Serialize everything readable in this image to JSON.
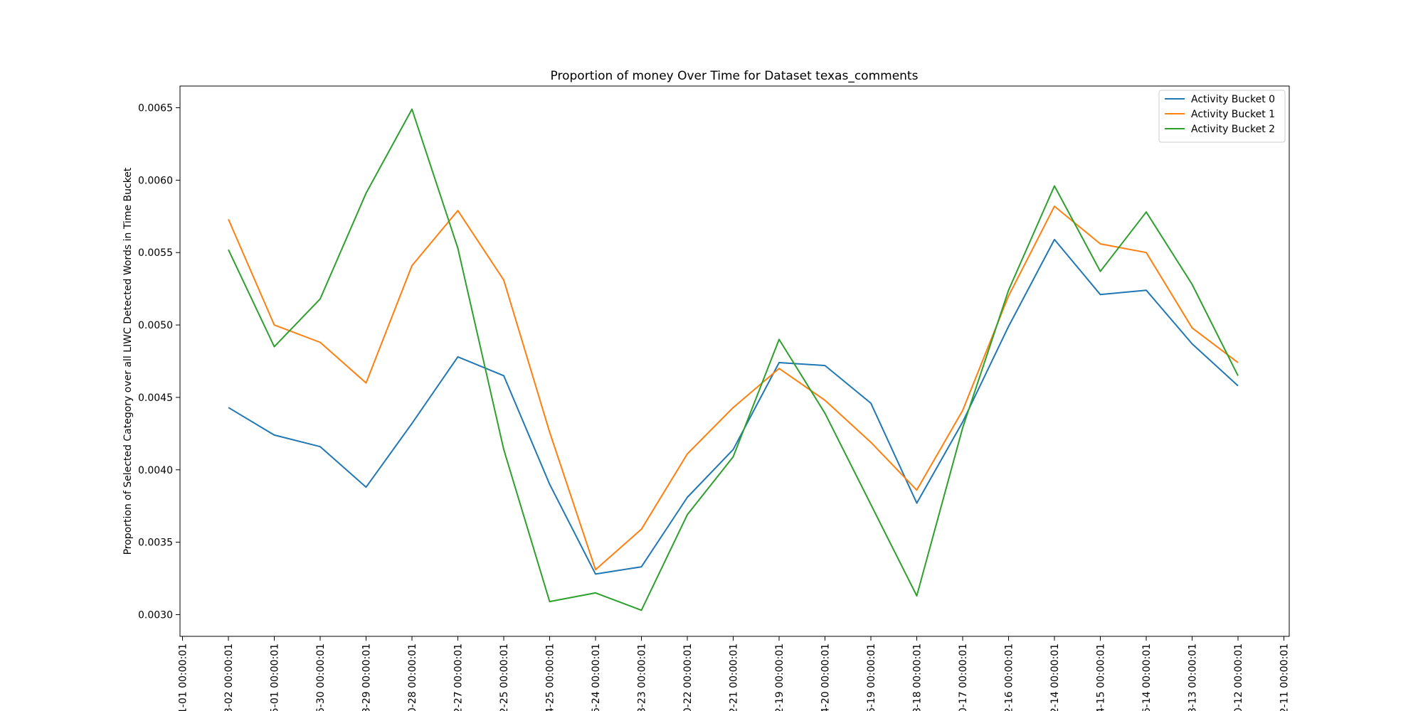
{
  "chart_data": {
    "type": "line",
    "title": "Proportion of money Over Time for Dataset texas_comments",
    "xlabel": "",
    "ylabel": "Proportion of Selected Category over all LIWC Detected Words in Time Bucket",
    "x_tick_labels": [
      "1-01 00:00:01",
      "3-02 00:00:01",
      "5-01 00:00:01",
      "6-30 00:00:01",
      "8-29 00:00:01",
      "0-28 00:00:01",
      "2-27 00:00:01",
      "2-25 00:00:01",
      "4-25 00:00:01",
      "6-24 00:00:01",
      "8-23 00:00:01",
      "0-22 00:00:01",
      "2-21 00:00:01",
      "2-19 00:00:01",
      "4-20 00:00:01",
      "6-19 00:00:01",
      "8-18 00:00:01",
      "0-17 00:00:01",
      "2-16 00:00:01",
      "2-14 00:00:01",
      "4-15 00:00:01",
      "6-14 00:00:01",
      "8-13 00:00:01",
      "0-12 00:00:01",
      "2-11 00:00:01"
    ],
    "y_ticks": [
      "0.0030",
      "0.0035",
      "0.0040",
      "0.0045",
      "0.0050",
      "0.0055",
      "0.0060",
      "0.0065"
    ],
    "ylim": [
      0.00285,
      0.00665
    ],
    "grid": false,
    "legend_position": "upper right",
    "series": [
      {
        "name": "Activity Bucket 0",
        "color": "#1f77b4",
        "x_index": [
          1,
          2,
          3,
          4,
          5,
          6,
          7,
          8,
          9,
          10,
          11,
          12,
          13,
          14,
          15,
          16,
          17,
          18,
          19,
          20,
          21,
          22,
          23
        ],
        "values": [
          0.00443,
          0.00424,
          0.00416,
          0.00388,
          0.00432,
          0.00478,
          0.00465,
          0.0039,
          0.00328,
          0.00333,
          0.00381,
          0.00414,
          0.00474,
          0.00472,
          0.00446,
          0.00377,
          0.00433,
          0.00499,
          0.00559,
          0.00521,
          0.00524,
          0.00487,
          0.00458
        ]
      },
      {
        "name": "Activity Bucket 1",
        "color": "#ff7f0e",
        "x_index": [
          1,
          2,
          3,
          4,
          5,
          6,
          7,
          8,
          9,
          10,
          11,
          12,
          13,
          14,
          15,
          16,
          17,
          18,
          19,
          20,
          21,
          22,
          23
        ],
        "values": [
          0.00573,
          0.005,
          0.00488,
          0.0046,
          0.00541,
          0.00579,
          0.00531,
          0.00426,
          0.00331,
          0.00359,
          0.00411,
          0.00443,
          0.0047,
          0.00448,
          0.00419,
          0.00386,
          0.00441,
          0.0052,
          0.00582,
          0.00556,
          0.0055,
          0.00498,
          0.00474
        ]
      },
      {
        "name": "Activity Bucket 2",
        "color": "#2ca02c",
        "x_index": [
          1,
          2,
          3,
          4,
          5,
          6,
          7,
          8,
          9,
          10,
          11,
          12,
          13,
          14,
          15,
          16,
          17,
          18,
          19,
          20,
          21,
          22,
          23
        ],
        "values": [
          0.00552,
          0.00485,
          0.00518,
          0.00591,
          0.00649,
          0.00553,
          0.00414,
          0.00309,
          0.00315,
          0.00303,
          0.00369,
          0.00409,
          0.0049,
          0.00439,
          0.00376,
          0.00313,
          0.00429,
          0.00524,
          0.00596,
          0.00537,
          0.00578,
          0.00528,
          0.00465
        ]
      }
    ]
  }
}
